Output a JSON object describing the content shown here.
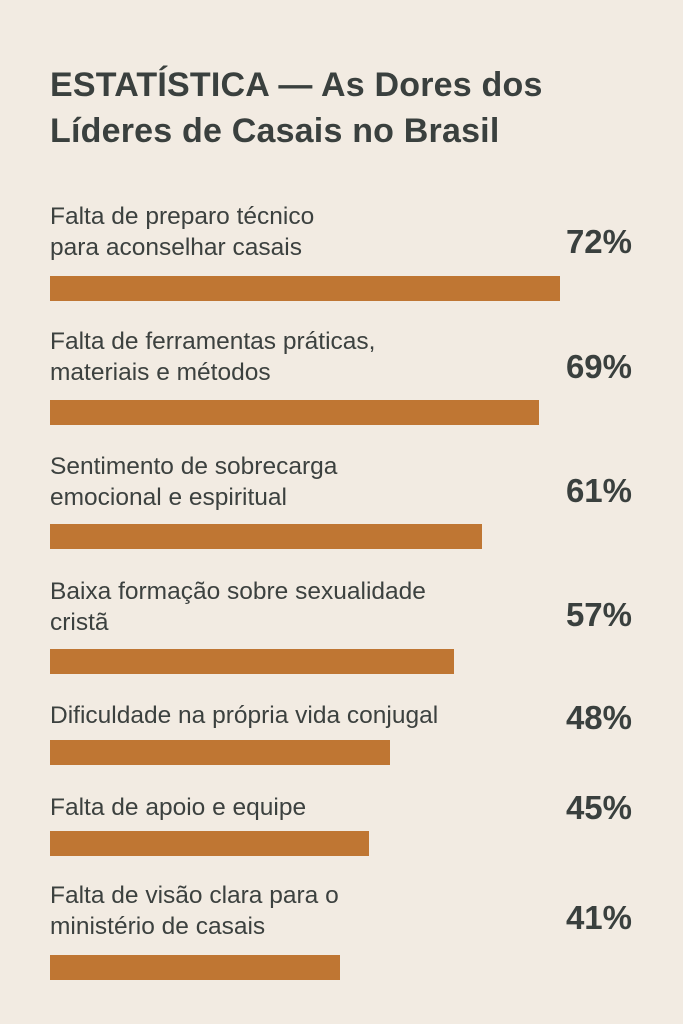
{
  "chart_data": {
    "type": "bar",
    "orientation": "horizontal",
    "title": "ESTATÍSTICA — As Dores dos Líderes de Casais no Brasil",
    "categories": [
      "Falta de preparo técnico\npara aconselhar casais",
      "Falta de ferramentas práticas,\nmateriais e métodos",
      "Sentimento de sobrecarga\nemocional e espiritual",
      "Baixa formação sobre sexualidade\ncristã",
      "Dificuldade na própria vida conjugal",
      "Falta de apoio e equipe",
      "Falta de visão clara para o\nministério de casais"
    ],
    "values": [
      72,
      69,
      61,
      57,
      48,
      45,
      41
    ],
    "value_labels": [
      "72%",
      "69%",
      "61%",
      "57%",
      "48%",
      "45%",
      "41%"
    ],
    "unit": "%",
    "xlim": [
      0,
      100
    ],
    "grid": false,
    "legend": "none",
    "bar_color": "#bf7633"
  }
}
